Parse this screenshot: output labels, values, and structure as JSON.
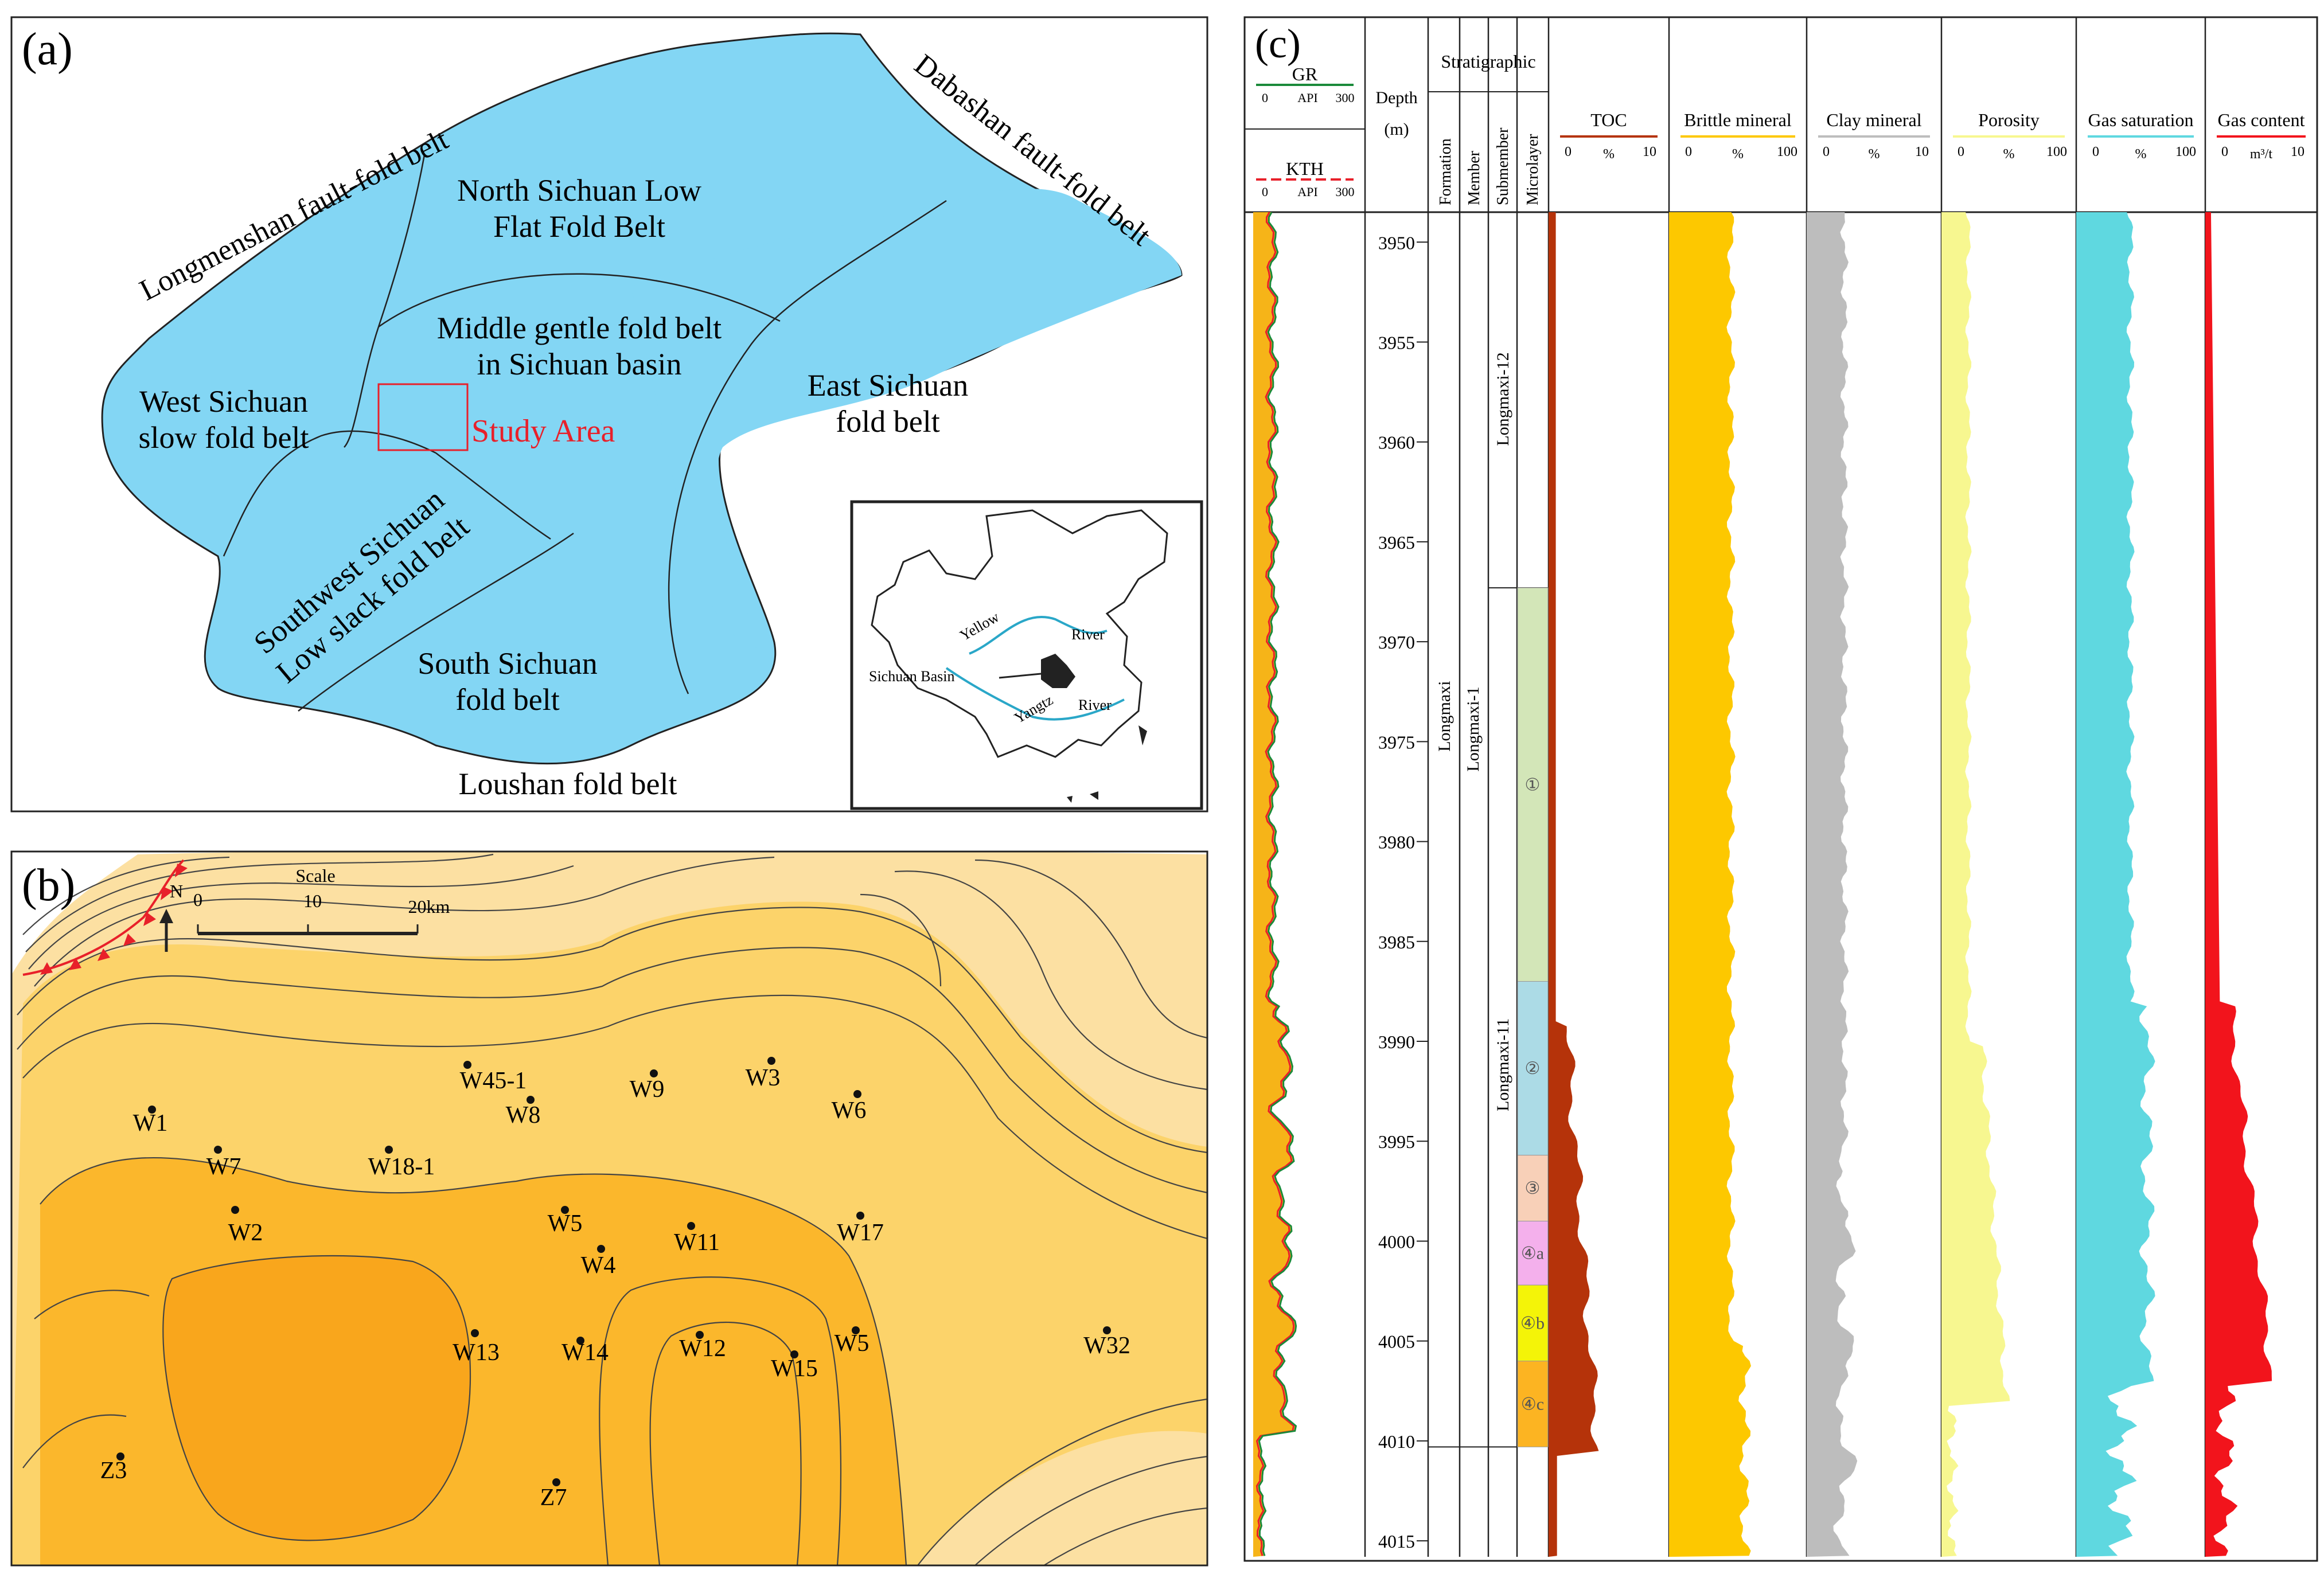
{
  "panel_a": {
    "label": "(a)",
    "regions": {
      "north": [
        "North Sichuan Low",
        "Flat Fold Belt"
      ],
      "middle": [
        "Middle gentle fold belt",
        "in Sichuan basin"
      ],
      "west": [
        "West Sichuan",
        "slow fold belt"
      ],
      "east": [
        "East Sichuan",
        "fold belt"
      ],
      "southwest": [
        "Southwest Sichuan",
        "Low slack fold belt"
      ],
      "south": [
        "South Sichuan",
        "fold belt"
      ]
    },
    "study_area": "Study Area",
    "belts": {
      "longmenshan": "Longmenshan fault-fold belt",
      "dabashan": "Dabashan fault-fold belt",
      "loushan": "Loushan fold belt"
    },
    "inset": {
      "yellow": "Yellow",
      "river1": "River",
      "yangtze": "Yangtz",
      "river2": "River",
      "basin": "Sichuan Basin"
    },
    "colors": {
      "basin_fill": "#83d6f4",
      "study_box": "#e8202a"
    }
  },
  "panel_b": {
    "label": "(b)",
    "scale": {
      "title": "Scale",
      "t0": "0",
      "t1": "10",
      "t2": "20km"
    },
    "north": "N",
    "wells": [
      {
        "name": "W1"
      },
      {
        "name": "W7"
      },
      {
        "name": "W2"
      },
      {
        "name": "W18-1"
      },
      {
        "name": "W45-1"
      },
      {
        "name": "W8"
      },
      {
        "name": "W9"
      },
      {
        "name": "W3"
      },
      {
        "name": "W6"
      },
      {
        "name": "W5"
      },
      {
        "name": "W4"
      },
      {
        "name": "W11"
      },
      {
        "name": "W17"
      },
      {
        "name": "W13"
      },
      {
        "name": "W14"
      },
      {
        "name": "W12"
      },
      {
        "name": "W15"
      },
      {
        "name": "W5"
      },
      {
        "name": "W32"
      },
      {
        "name": "Z3"
      },
      {
        "name": "Z7"
      }
    ],
    "colors": {
      "light": "#fce0a2",
      "mid": "#fcd36a",
      "deep": "#fbb72c",
      "deepest": "#f9a61c"
    }
  },
  "panel_c": {
    "label": "(c)",
    "gr": {
      "name": "GR",
      "min": "0",
      "unit": "API",
      "max": "300"
    },
    "kth": {
      "name": "KTH",
      "min": "0",
      "unit": "API",
      "max": "300"
    },
    "depth_header": [
      "Depth",
      "(m)"
    ],
    "strat_header": "Stratigraphic",
    "strat_cols": [
      "Formation",
      "Member",
      "Submember",
      "Microlayer"
    ],
    "formation": "Longmaxi",
    "member": "Longmaxi-1",
    "submembers": [
      "Longmaxi-12",
      "Longmaxi-11"
    ],
    "microlayers": [
      "④c",
      "④b",
      "④a",
      "③",
      "②",
      "①"
    ],
    "depths": [
      "3950",
      "3955",
      "3960",
      "3965",
      "3970",
      "3975",
      "3980",
      "3985",
      "3990",
      "3995",
      "4000",
      "4005",
      "4010",
      "4015"
    ],
    "tracks": [
      {
        "name": "TOC",
        "min": "0",
        "unit": "%",
        "max": "10",
        "color": "#b5330a"
      },
      {
        "name": "Brittle mineral",
        "min": "0",
        "unit": "%",
        "max": "100",
        "color": "#fdc800"
      },
      {
        "name": "Clay mineral",
        "min": "0",
        "unit": "%",
        "max": "10",
        "color": "#bdbdbd"
      },
      {
        "name": "Porosity",
        "min": "0",
        "unit": "%",
        "max": "100",
        "color": "#f7f790"
      },
      {
        "name": "Gas saturation",
        "min": "0",
        "unit": "%",
        "max": "100",
        "color": "#5fd8e0"
      },
      {
        "name": "Gas content",
        "min": "0",
        "unit": "m³/t",
        "max": "10",
        "color": "#f2141c"
      }
    ]
  }
}
